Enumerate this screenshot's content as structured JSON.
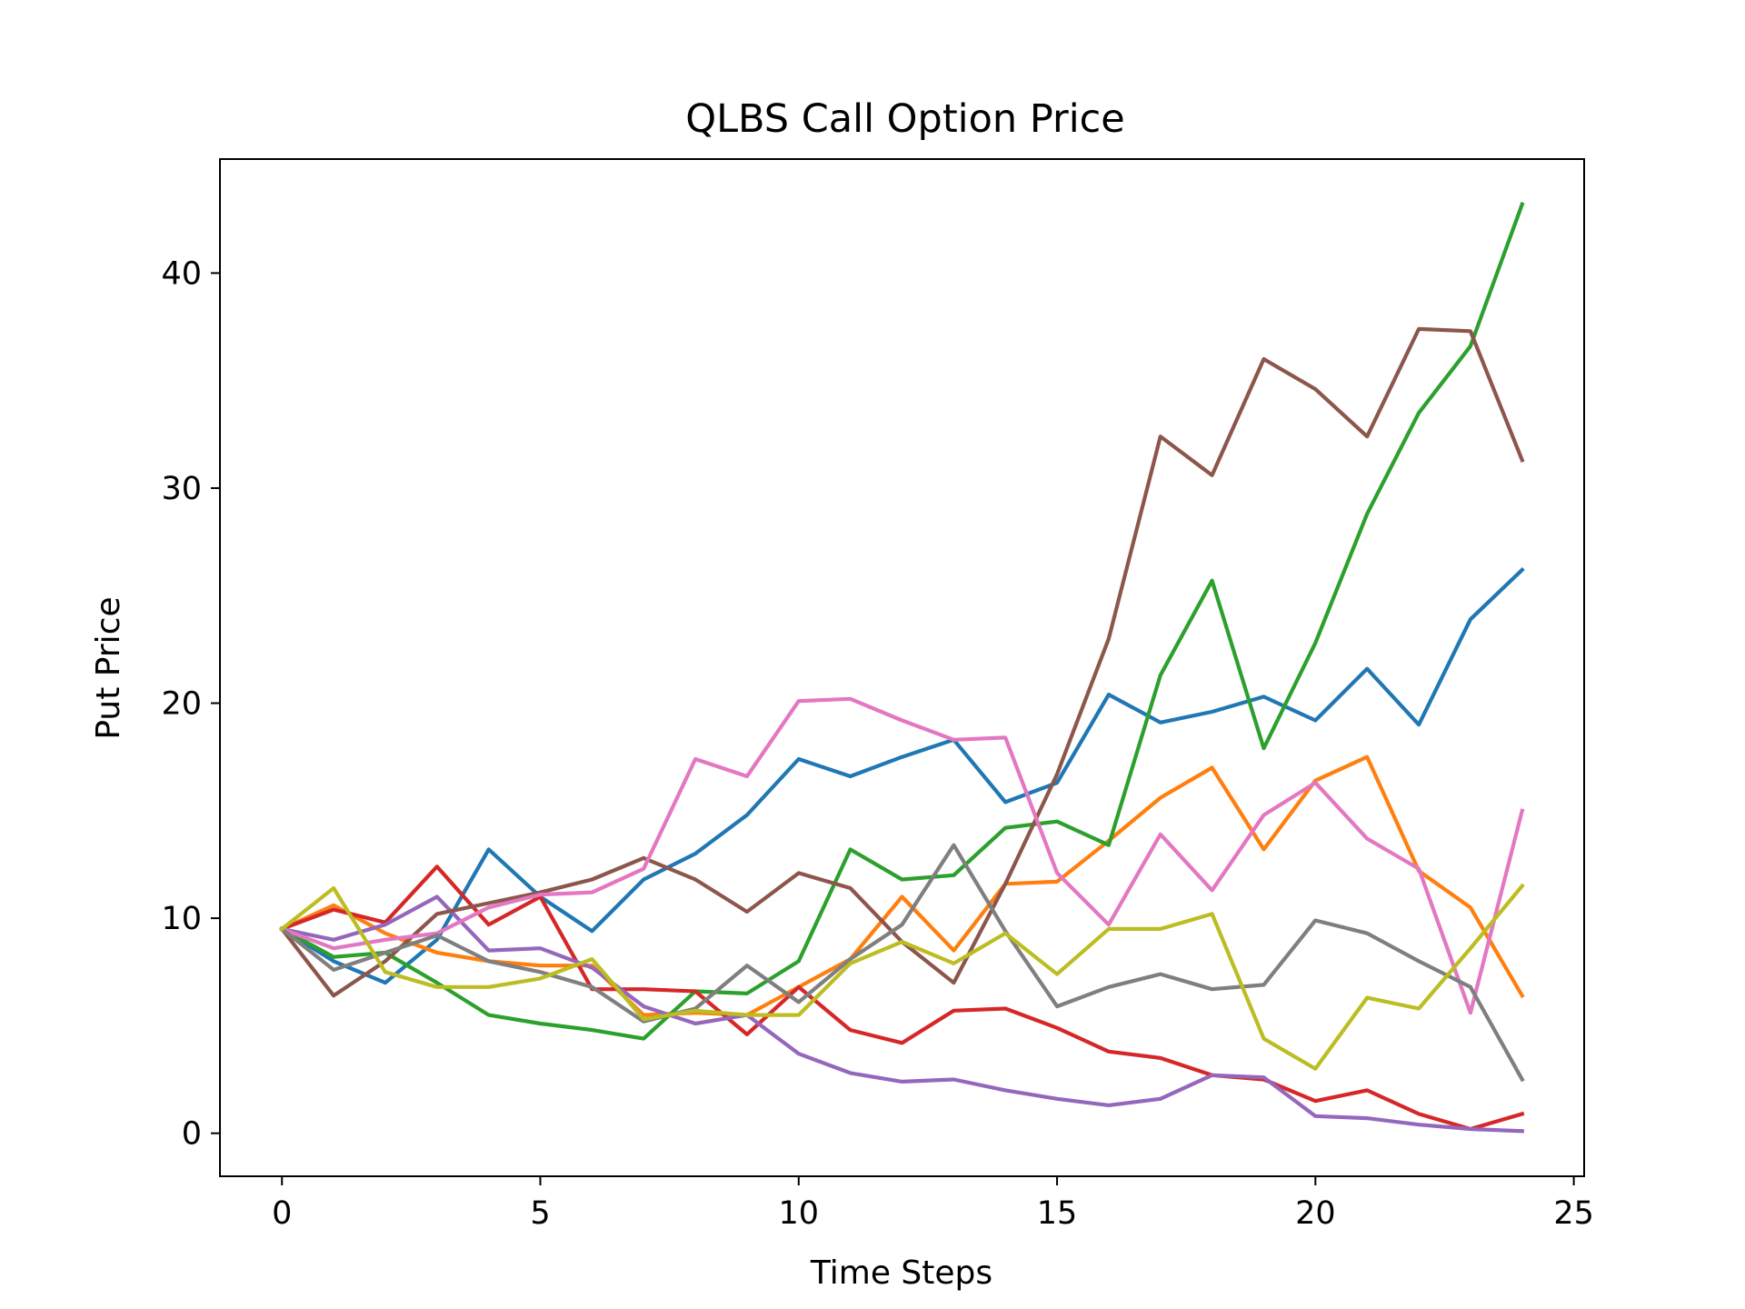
{
  "chart_data": {
    "type": "line",
    "title": "QLBS Call Option Price",
    "xlabel": "Time Steps",
    "ylabel": "Put Price",
    "xlim": [
      -1.2,
      25.2
    ],
    "ylim": [
      -2.0,
      45.3
    ],
    "xticks": [
      0,
      5,
      10,
      15,
      20,
      25
    ],
    "yticks": [
      0,
      10,
      20,
      30,
      40
    ],
    "grid": false,
    "x": [
      0,
      1,
      2,
      3,
      4,
      5,
      6,
      7,
      8,
      9,
      10,
      11,
      12,
      13,
      14,
      15,
      16,
      17,
      18,
      19,
      20,
      21,
      22,
      23,
      24
    ],
    "series": [
      {
        "color": "#1f77b4",
        "values": [
          9.5,
          8.0,
          7.0,
          9.0,
          13.2,
          11.0,
          9.4,
          11.8,
          13.0,
          14.8,
          17.4,
          16.6,
          17.5,
          18.3,
          15.4,
          16.3,
          20.4,
          19.1,
          19.6,
          20.3,
          19.2,
          21.6,
          19.0,
          23.9,
          26.2
        ]
      },
      {
        "color": "#ff7f0e",
        "values": [
          9.5,
          10.6,
          9.3,
          8.4,
          8.0,
          7.8,
          7.8,
          5.5,
          5.6,
          5.5,
          6.8,
          8.1,
          11.0,
          8.5,
          11.6,
          11.7,
          13.6,
          15.6,
          17.0,
          13.2,
          16.4,
          17.5,
          12.2,
          10.5,
          6.4
        ]
      },
      {
        "color": "#2ca02c",
        "values": [
          9.5,
          8.2,
          8.4,
          7.0,
          5.5,
          5.1,
          4.8,
          4.4,
          6.6,
          6.5,
          8.0,
          13.2,
          11.8,
          12.0,
          14.2,
          14.5,
          13.4,
          21.3,
          25.7,
          17.9,
          22.8,
          28.8,
          33.5,
          36.6,
          43.2
        ]
      },
      {
        "color": "#d62728",
        "values": [
          9.5,
          10.4,
          9.8,
          12.4,
          9.7,
          11.0,
          6.7,
          6.7,
          6.6,
          4.6,
          6.8,
          4.8,
          4.2,
          5.7,
          5.8,
          4.9,
          3.8,
          3.5,
          2.7,
          2.5,
          1.5,
          2.0,
          0.9,
          0.2,
          0.9
        ]
      },
      {
        "color": "#9467bd",
        "values": [
          9.5,
          9.0,
          9.7,
          11.0,
          8.5,
          8.6,
          7.7,
          5.9,
          5.1,
          5.5,
          3.7,
          2.8,
          2.4,
          2.5,
          2.0,
          1.6,
          1.3,
          1.6,
          2.7,
          2.6,
          0.8,
          0.7,
          0.4,
          0.2,
          0.1
        ]
      },
      {
        "color": "#8c564b",
        "values": [
          9.5,
          6.4,
          8.0,
          10.2,
          10.7,
          11.2,
          11.8,
          12.8,
          11.8,
          10.3,
          12.1,
          11.4,
          8.9,
          7.0,
          11.6,
          16.7,
          23.0,
          32.4,
          30.6,
          36.0,
          34.6,
          32.4,
          37.4,
          37.3,
          31.3
        ]
      },
      {
        "color": "#e377c2",
        "values": [
          9.5,
          8.6,
          9.0,
          9.3,
          10.5,
          11.1,
          11.2,
          12.3,
          17.4,
          16.6,
          20.1,
          20.2,
          19.2,
          18.3,
          18.4,
          12.1,
          9.7,
          13.9,
          11.3,
          14.8,
          16.3,
          13.7,
          12.3,
          5.6,
          15.0
        ]
      },
      {
        "color": "#7f7f7f",
        "values": [
          9.5,
          7.6,
          8.4,
          9.2,
          8.0,
          7.5,
          6.8,
          5.2,
          5.8,
          7.8,
          6.1,
          8.1,
          9.7,
          13.4,
          9.4,
          5.9,
          6.8,
          7.4,
          6.7,
          6.9,
          9.9,
          9.3,
          8.0,
          6.8,
          2.5
        ]
      },
      {
        "color": "#bcbd22",
        "values": [
          9.5,
          11.4,
          7.5,
          6.8,
          6.8,
          7.2,
          8.1,
          5.3,
          5.7,
          5.5,
          5.5,
          7.9,
          8.9,
          7.9,
          9.3,
          7.4,
          9.5,
          9.5,
          10.2,
          4.4,
          3.0,
          6.3,
          5.8,
          8.6,
          11.5
        ]
      }
    ]
  }
}
